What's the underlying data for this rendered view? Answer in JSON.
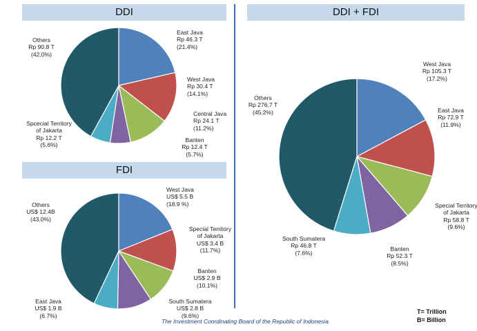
{
  "colors": {
    "title_bg": "#c5d9ea",
    "divider": "#3d6fb0",
    "slice": {
      "blue": "#4f81bd",
      "red": "#c0504d",
      "green": "#9bbb59",
      "purple": "#8064a2",
      "cyan": "#4bacc6",
      "teal": "#215968"
    }
  },
  "panels": {
    "ddi": {
      "title": "DDI"
    },
    "fdi": {
      "title": "FDI"
    },
    "both": {
      "title": "DDI + FDI"
    }
  },
  "legend": {
    "t": "T= Trillion",
    "b": "B= Billion"
  },
  "source": "The Investment Coordinating Board of the Republic of Indonesia",
  "chart_data": [
    {
      "type": "pie",
      "title": "DDI",
      "unit": "Rp T",
      "slices": [
        {
          "name": "East Java",
          "value": 46.3,
          "value_label": "Rp 46.3 T",
          "pct_label": "(21.4%)",
          "pct": 21.4,
          "color": "blue"
        },
        {
          "name": "West Java",
          "value": 30.4,
          "value_label": "Rp 30.4 T",
          "pct_label": "(14.1%)",
          "pct": 14.1,
          "color": "red"
        },
        {
          "name": "Central Java",
          "value": 24.1,
          "value_label": "Rp 24.1 T",
          "pct_label": "(11.2%)",
          "pct": 11.2,
          "color": "green"
        },
        {
          "name": "Banten",
          "value": 12.4,
          "value_label": "Rp 12.4 T",
          "pct_label": "(5.7%)",
          "pct": 5.7,
          "color": "purple"
        },
        {
          "name": "Spcecial Territory of Jakarta",
          "name_lines": [
            "Spcecial Territory",
            "of Jakarta"
          ],
          "value": 12.2,
          "value_label": "Rp 12.2 T",
          "pct_label": "(5.6%)",
          "pct": 5.6,
          "color": "cyan"
        },
        {
          "name": "Others",
          "value": 90.8,
          "value_label": "Rp 90.8 T",
          "pct_label": "(42.0%)",
          "pct": 42.0,
          "color": "teal"
        }
      ]
    },
    {
      "type": "pie",
      "title": "FDI",
      "unit": "US$ B",
      "slices": [
        {
          "name": "West Java",
          "value": 5.5,
          "value_label": "US$ 5.5 B",
          "pct_label": "(18.9 %)",
          "pct": 18.9,
          "color": "blue"
        },
        {
          "name": "Special Territory of Jakarta",
          "name_lines": [
            "Special Territory",
            "of Jakarta"
          ],
          "value": 3.4,
          "value_label": "US$ 3.4 B",
          "pct_label": "(11.7%)",
          "pct": 11.7,
          "color": "red"
        },
        {
          "name": "Banten",
          "value": 2.9,
          "value_label": "US$ 2.9 B",
          "pct_label": "(10.1%)",
          "pct": 10.1,
          "color": "green"
        },
        {
          "name": "South Sumatera",
          "value": 2.8,
          "value_label": "US$ 2.8 B",
          "pct_label": "(9.6%)",
          "pct": 9.6,
          "color": "purple"
        },
        {
          "name": "East Java",
          "value": 1.9,
          "value_label": "US$ 1.9 B",
          "pct_label": "(6.7%)",
          "pct": 6.7,
          "color": "cyan"
        },
        {
          "name": "Others",
          "value": 12.4,
          "value_label": "US$ 12.4B",
          "pct_label": "(43.0%)",
          "pct": 43.0,
          "color": "teal"
        }
      ]
    },
    {
      "type": "pie",
      "title": "DDI + FDI",
      "unit": "Rp T",
      "slices": [
        {
          "name": "West Java",
          "value": 105.3,
          "value_label": "Rp 105.3 T",
          "pct_label": "(17.2%)",
          "pct": 17.2,
          "color": "blue"
        },
        {
          "name": "East Java",
          "value": 72.9,
          "value_label": "Rp 72.9 T",
          "pct_label": "(11.9%)",
          "pct": 11.9,
          "color": "red"
        },
        {
          "name": "Special Territory of Jakarta",
          "name_lines": [
            "Special Territory",
            "of Jakarta"
          ],
          "value": 58.8,
          "value_label": "Rp 58.8 T",
          "pct_label": "(9.6%)",
          "pct": 9.6,
          "color": "green"
        },
        {
          "name": "Banten",
          "value": 52.3,
          "value_label": "Rp 52.3 T",
          "pct_label": "(8.5%)",
          "pct": 8.5,
          "color": "purple"
        },
        {
          "name": "South Sumatera",
          "value": 46.8,
          "value_label": "Rp 46.8 T",
          "pct_label": "(7.6%)",
          "pct": 7.6,
          "color": "cyan"
        },
        {
          "name": "Others",
          "value": 276.7,
          "value_label": "Rp 276.7 T",
          "pct_label": "(45.2%)",
          "pct": 45.2,
          "color": "teal"
        }
      ]
    }
  ]
}
